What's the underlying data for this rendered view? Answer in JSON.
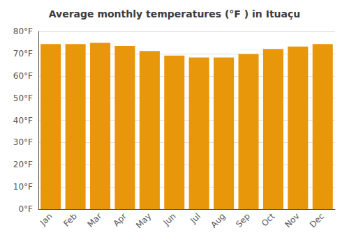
{
  "chart_data": {
    "type": "bar",
    "title": "Average monthly temperatures (°F ) in Ituaçu",
    "categories": [
      "Jan",
      "Feb",
      "Mar",
      "Apr",
      "May",
      "Jun",
      "Jul",
      "Aug",
      "Sep",
      "Oct",
      "Nov",
      "Dec"
    ],
    "values": [
      74.3,
      74.3,
      74.8,
      73.4,
      71.1,
      69.1,
      68.2,
      68.2,
      69.8,
      72.1,
      73.2,
      74.3
    ],
    "color": "#E8960A",
    "ylim": [
      0,
      80
    ],
    "yticks": [
      {
        "value": 0,
        "label": "0°F"
      },
      {
        "value": 10,
        "label": "10°F"
      },
      {
        "value": 20,
        "label": "20°F"
      },
      {
        "value": 30,
        "label": "30°F"
      },
      {
        "value": 40,
        "label": "40°F"
      },
      {
        "value": 50,
        "label": "50°F"
      },
      {
        "value": 60,
        "label": "60°F"
      },
      {
        "value": 70,
        "label": "70°F"
      },
      {
        "value": 80,
        "label": "80°F"
      }
    ],
    "grid": true
  }
}
